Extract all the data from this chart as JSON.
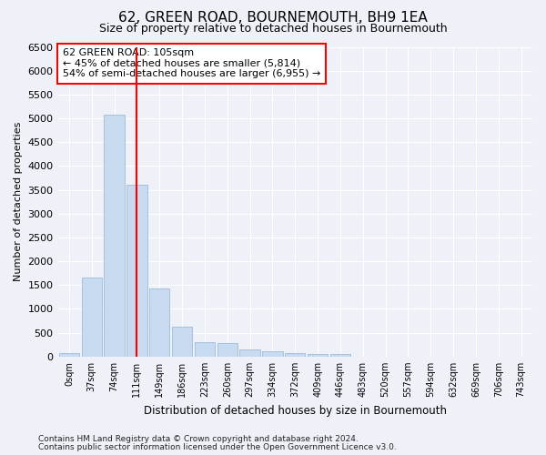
{
  "title": "62, GREEN ROAD, BOURNEMOUTH, BH9 1EA",
  "subtitle": "Size of property relative to detached houses in Bournemouth",
  "xlabel": "Distribution of detached houses by size in Bournemouth",
  "ylabel": "Number of detached properties",
  "footer_line1": "Contains HM Land Registry data © Crown copyright and database right 2024.",
  "footer_line2": "Contains public sector information licensed under the Open Government Licence v3.0.",
  "bar_labels": [
    "0sqm",
    "37sqm",
    "74sqm",
    "111sqm",
    "149sqm",
    "186sqm",
    "223sqm",
    "260sqm",
    "297sqm",
    "334sqm",
    "372sqm",
    "409sqm",
    "446sqm",
    "483sqm",
    "520sqm",
    "557sqm",
    "594sqm",
    "632sqm",
    "669sqm",
    "706sqm",
    "743sqm"
  ],
  "bar_values": [
    75,
    1650,
    5080,
    3600,
    1420,
    620,
    300,
    285,
    140,
    115,
    80,
    60,
    60,
    0,
    0,
    0,
    0,
    0,
    0,
    0,
    0
  ],
  "bar_color": "#c8daef",
  "bar_edgecolor": "#a0bcd8",
  "ylim": [
    0,
    6500
  ],
  "yticks": [
    0,
    500,
    1000,
    1500,
    2000,
    2500,
    3000,
    3500,
    4000,
    4500,
    5000,
    5500,
    6000,
    6500
  ],
  "annotation_title": "62 GREEN ROAD: 105sqm",
  "annotation_line1": "← 45% of detached houses are smaller (5,814)",
  "annotation_line2": "54% of semi-detached houses are larger (6,955) →",
  "vline_x_index": 3.0,
  "background_color": "#eef2f8",
  "grid_color": "#ffffff",
  "title_fontsize": 11,
  "subtitle_fontsize": 9
}
